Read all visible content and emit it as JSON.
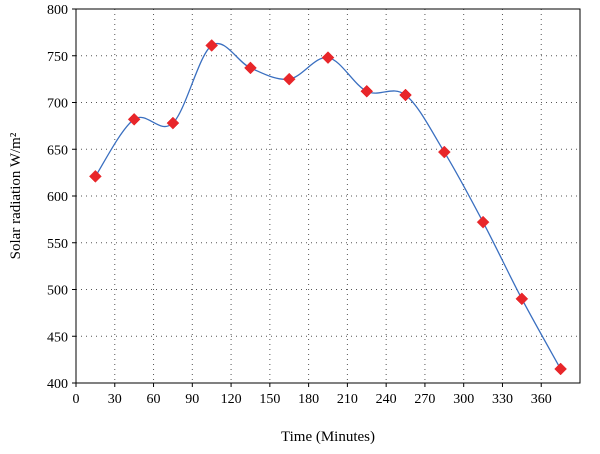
{
  "chart_data": {
    "type": "line",
    "title": "",
    "xlabel": "Time (Minutes)",
    "ylabel": "Solar radiation W/m²",
    "xlim": [
      0,
      390
    ],
    "ylim": [
      400,
      800
    ],
    "xticks": [
      0,
      30,
      60,
      90,
      120,
      150,
      180,
      210,
      240,
      270,
      300,
      330,
      360
    ],
    "yticks": [
      400,
      450,
      500,
      550,
      600,
      650,
      700,
      750,
      800
    ],
    "grid": true,
    "grid_style": "dotted",
    "line_style": "smoothed",
    "series": [
      {
        "x": [
          15,
          45,
          75,
          105,
          135,
          165,
          195,
          225,
          255,
          285,
          315,
          345,
          375
        ],
        "values": [
          621,
          682,
          678,
          761,
          737,
          725,
          748,
          712,
          708,
          647,
          572,
          490,
          415
        ],
        "line_color": "#3a6fc0",
        "marker": "diamond",
        "marker_color": "#e8262a"
      }
    ]
  }
}
